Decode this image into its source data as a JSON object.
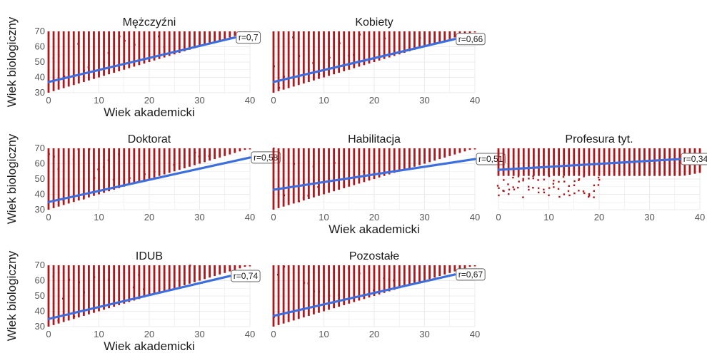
{
  "chart_data": {
    "type": "scatter",
    "xlabel": "Wiek akademicki",
    "ylabel": "Wiek biologiczny",
    "xlim": [
      0,
      40
    ],
    "ylim": [
      30,
      70
    ],
    "xticks": [
      0,
      10,
      20,
      30,
      40
    ],
    "yticks": [
      30,
      40,
      50,
      60,
      70
    ],
    "grid": true,
    "colors": {
      "points": "#b0151a",
      "trend": "#3b6fe0",
      "grid": "#ebebeb"
    },
    "panels": [
      {
        "title": "Mężczyźni",
        "r_label": "r=0,7",
        "trend": {
          "y_at_0": 37,
          "y_at_37": 66
        },
        "x_max": 40,
        "y_min": 30,
        "y_max": 70
      },
      {
        "title": "Kobiety",
        "r_label": "r=0,66",
        "trend": {
          "y_at_0": 37,
          "y_at_36": 65
        },
        "x_max": 40,
        "y_min": 30,
        "y_max": 70
      },
      {
        "title": "Doktorat",
        "r_label": "r=0,58",
        "trend": {
          "y_at_0": 35,
          "y_at_40": 64
        },
        "x_max": 40,
        "y_min": 30,
        "y_max": 70
      },
      {
        "title": "Habilitacja",
        "r_label": "r=0,51",
        "trend": {
          "y_at_0": 43,
          "y_at_40": 63
        },
        "x_max": 40,
        "y_min": 30,
        "y_max": 70
      },
      {
        "title": "Profesura tyt.",
        "r_label": "r=0,34",
        "trend": {
          "y_at_0": 56,
          "y_at_36": 63
        },
        "x_max": 40,
        "y_min": 38,
        "y_max": 70
      },
      {
        "title": "IDUB",
        "r_label": "r=0,74",
        "trend": {
          "y_at_0": 35,
          "y_at_36": 63
        },
        "x_max": 40,
        "y_min": 30,
        "y_max": 70
      },
      {
        "title": "Pozostałe",
        "r_label": "r=0,67",
        "trend": {
          "y_at_0": 37,
          "y_at_36": 64
        },
        "x_max": 40,
        "y_min": 30,
        "y_max": 70
      }
    ]
  }
}
